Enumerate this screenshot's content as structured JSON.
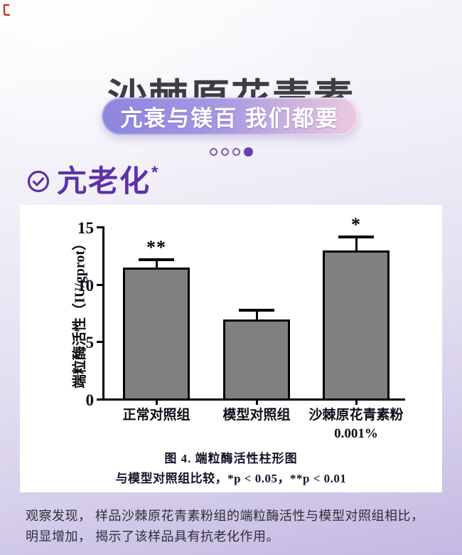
{
  "page": {
    "title": "沙棘原花青素",
    "banner": {
      "label": "亢衰与镁百 我们都要"
    },
    "carousel": {
      "dot_count": 4,
      "active_index": 3
    },
    "section": {
      "heading": "亢老化",
      "superscript": "*"
    },
    "footer": {
      "line1": "观察发现， 样品沙棘原花青素粉组的端粒酶活性与模型对照组相比，",
      "line2": "明显增加， 揭示了该样品具有抗老化作用。"
    },
    "colors": {
      "accent_purple": "#5b32a8",
      "pill_gradient_start": "#8b86e0",
      "pill_gradient_end": "#eccade",
      "dot_outline": "#7a5fae",
      "dot_active": "#6b3fae",
      "title_color": "#3f3d42",
      "corner_mark_red": "#c43a2c"
    },
    "icons": {
      "check_circle": "check-circle-icon",
      "corner_mark": "red-glyph-fragment"
    }
  },
  "chart_data": {
    "type": "bar",
    "categories": [
      "正常对照组",
      "模型对照组",
      "沙棘原花青素粉\n0.001%"
    ],
    "values": [
      11.4,
      6.9,
      12.9
    ],
    "errors_plus": [
      0.7,
      0.8,
      1.2
    ],
    "significance": [
      "**",
      "",
      "*"
    ],
    "title": "图 4. 端粒酶活性柱形图",
    "note": "与模型对照组比较，*p < 0.05，**p < 0.01",
    "ylabel": "端粒酶活性（IU/gprot）",
    "yticks": [
      0,
      5,
      10,
      15
    ],
    "ylim": [
      0,
      15
    ],
    "grid": false,
    "legend": "none",
    "bar_color": "#808080",
    "bar_border": "#000000"
  }
}
